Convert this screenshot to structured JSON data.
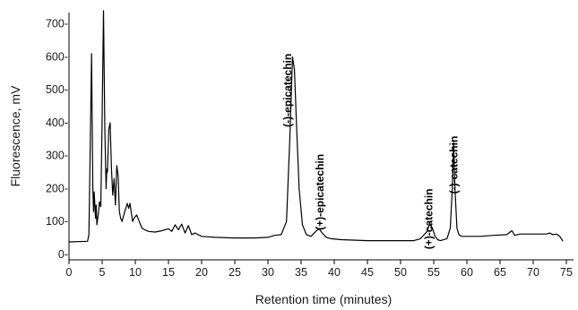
{
  "chart_data": {
    "type": "line",
    "title": "",
    "xlabel": "Retention time (minutes)",
    "ylabel": "Fluorescence, mV",
    "xlim": [
      0,
      75
    ],
    "ylim": [
      0,
      740
    ],
    "x_ticks": [
      "0",
      "5",
      "10",
      "15",
      "20",
      "25",
      "30",
      "35",
      "40",
      "45",
      "50",
      "55",
      "60",
      "65",
      "70",
      "75"
    ],
    "y_ticks": [
      "0-",
      "100-",
      "200-",
      "300-",
      "400-",
      "500-",
      "600-",
      "700-"
    ],
    "grid": false,
    "legend": "none",
    "line_color": "#000000",
    "series": [
      {
        "x": [
          0,
          2.8,
          3.0,
          3.2,
          3.4,
          3.5,
          3.6,
          3.7,
          3.8,
          4.0,
          4.1,
          4.2,
          4.4,
          4.6,
          4.8,
          5.0,
          5.2,
          5.4,
          5.6,
          5.7,
          5.8,
          6.0,
          6.2,
          6.4,
          6.6,
          6.8,
          7.0,
          7.2,
          7.4,
          7.6,
          7.8,
          8.0,
          8.4,
          8.8,
          9.0,
          9.2,
          9.4,
          9.6,
          9.8,
          10.2,
          10.6,
          11.0,
          11.4,
          12,
          13,
          14,
          15,
          15.5,
          16,
          16.5,
          17,
          17.5,
          18,
          18.5,
          19,
          20,
          22,
          25,
          28,
          30,
          31,
          32,
          32.8,
          33.3,
          33.7,
          34.0,
          34.3,
          34.7,
          35.2,
          35.8,
          36.5,
          37.2,
          37.7,
          38.2,
          38.8,
          39.5,
          41,
          45,
          50,
          52,
          53,
          54,
          54.4,
          54.8,
          55.2,
          55.6,
          56,
          57,
          57.5,
          57.8,
          58.0,
          58.2,
          58.5,
          58.8,
          59.2,
          60,
          62,
          64,
          66,
          66.8,
          67.2,
          68,
          70,
          72,
          72.5,
          73,
          73.5,
          74,
          74.5
        ],
        "y": [
          38,
          40,
          60,
          330,
          610,
          400,
          200,
          130,
          190,
          110,
          150,
          90,
          120,
          160,
          145,
          420,
          740,
          380,
          200,
          260,
          250,
          380,
          400,
          260,
          180,
          230,
          150,
          270,
          240,
          130,
          110,
          100,
          130,
          155,
          140,
          155,
          125,
          100,
          110,
          120,
          100,
          80,
          75,
          70,
          68,
          72,
          78,
          70,
          90,
          75,
          92,
          65,
          88,
          60,
          65,
          55,
          52,
          50,
          50,
          52,
          58,
          60,
          100,
          350,
          600,
          560,
          400,
          200,
          90,
          60,
          55,
          70,
          78,
          65,
          52,
          48,
          45,
          42,
          42,
          42,
          48,
          70,
          95,
          80,
          55,
          45,
          42,
          48,
          80,
          200,
          340,
          200,
          80,
          60,
          55,
          55,
          55,
          58,
          60,
          72,
          58,
          62,
          62,
          62,
          65,
          60,
          62,
          55,
          40
        ]
      }
    ],
    "annotations": [
      {
        "text": "(-)-epicatechin",
        "x": 33.5,
        "y": 610
      },
      {
        "text": "(+)-epicatechin",
        "x": 38.4,
        "y": 305
      },
      {
        "text": "(+)-catechin",
        "x": 54.8,
        "y": 200
      },
      {
        "text": "(-)-catechin",
        "x": 58.6,
        "y": 360
      }
    ]
  }
}
